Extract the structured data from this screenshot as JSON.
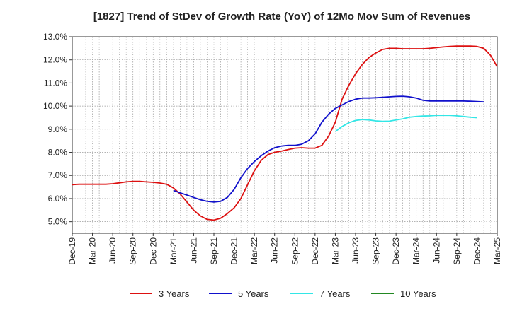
{
  "chart_data": {
    "type": "line",
    "title": "[1827]  Trend of StDev of Growth Rate (YoY) of 12Mo Mov Sum of Revenues",
    "xlabel": "",
    "ylabel": "",
    "ylim": [
      4.5,
      13.0
    ],
    "y_ticks": [
      5.0,
      6.0,
      7.0,
      8.0,
      9.0,
      10.0,
      11.0,
      12.0,
      13.0
    ],
    "y_tick_labels": [
      "5.0%",
      "6.0%",
      "7.0%",
      "8.0%",
      "9.0%",
      "10.0%",
      "11.0%",
      "12.0%",
      "13.0%"
    ],
    "x_tick_labels": [
      "Dec-19",
      "Mar-20",
      "Jun-20",
      "Sep-20",
      "Dec-20",
      "Mar-21",
      "Jun-21",
      "Sep-21",
      "Dec-21",
      "Mar-22",
      "Jun-22",
      "Sep-22",
      "Dec-22",
      "Mar-23",
      "Jun-23",
      "Sep-23",
      "Dec-23",
      "Mar-24",
      "Jun-24",
      "Sep-24",
      "Dec-24",
      "Mar-25"
    ],
    "x_month_range": [
      0,
      63
    ],
    "grid": true,
    "legend_position": "bottom",
    "series": [
      {
        "name": "3 Years",
        "color": "#dd1111",
        "start_month": 0,
        "values": [
          6.6,
          6.62,
          6.62,
          6.62,
          6.62,
          6.62,
          6.64,
          6.68,
          6.72,
          6.74,
          6.74,
          6.72,
          6.7,
          6.67,
          6.62,
          6.46,
          6.2,
          5.85,
          5.5,
          5.25,
          5.1,
          5.07,
          5.15,
          5.35,
          5.6,
          6.0,
          6.6,
          7.2,
          7.65,
          7.9,
          8.0,
          8.05,
          8.12,
          8.18,
          8.2,
          8.18,
          8.18,
          8.3,
          8.7,
          9.3,
          10.3,
          10.9,
          11.4,
          11.8,
          12.1,
          12.3,
          12.45,
          12.5,
          12.5,
          12.48,
          12.48,
          12.48,
          12.48,
          12.5,
          12.53,
          12.56,
          12.58,
          12.6,
          12.6,
          12.6,
          12.58,
          12.5,
          12.2,
          11.7
        ]
      },
      {
        "name": "5 Years",
        "color": "#1111cc",
        "start_month": 15,
        "values": [
          6.35,
          6.25,
          6.15,
          6.05,
          5.95,
          5.88,
          5.85,
          5.88,
          6.05,
          6.4,
          6.9,
          7.3,
          7.6,
          7.85,
          8.05,
          8.2,
          8.27,
          8.3,
          8.3,
          8.35,
          8.5,
          8.8,
          9.3,
          9.65,
          9.9,
          10.05,
          10.2,
          10.3,
          10.35,
          10.35,
          10.36,
          10.38,
          10.4,
          10.42,
          10.43,
          10.4,
          10.35,
          10.25,
          10.22,
          10.22,
          10.22,
          10.22,
          10.22,
          10.22,
          10.21,
          10.2,
          10.18
        ]
      },
      {
        "name": "7 Years",
        "color": "#33e6e6",
        "start_month": 39,
        "values": [
          8.9,
          9.12,
          9.28,
          9.38,
          9.42,
          9.4,
          9.36,
          9.34,
          9.35,
          9.4,
          9.45,
          9.52,
          9.55,
          9.57,
          9.58,
          9.6,
          9.6,
          9.6,
          9.58,
          9.55,
          9.52,
          9.5
        ]
      },
      {
        "name": "10 Years",
        "color": "#228822",
        "start_month": 0,
        "values": []
      }
    ]
  }
}
